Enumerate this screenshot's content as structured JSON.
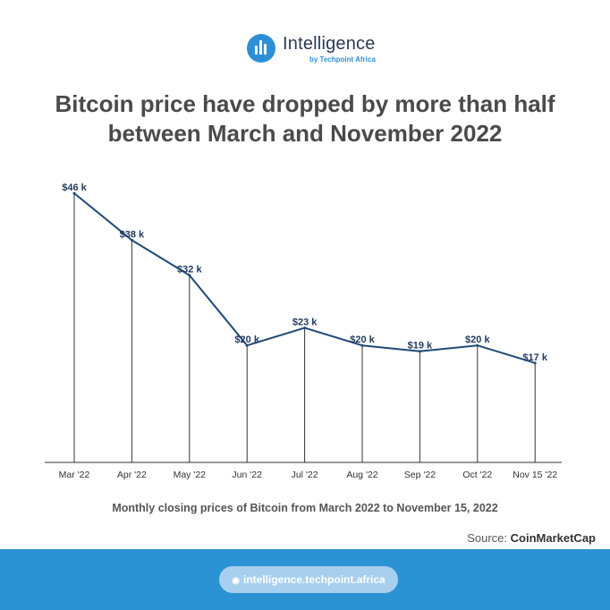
{
  "brand": {
    "logo_icon": "bar-chart-icon",
    "name": "Intelligence",
    "sub": "by Techpoint Africa"
  },
  "title_lines": [
    "Bitcoin price have dropped by more than half",
    "between March and November 2022"
  ],
  "chart_data": {
    "type": "line",
    "categories": [
      "Mar '22",
      "Apr '22",
      "May '22",
      "Jun '22",
      "Jul '22",
      "Aug '22",
      "Sep '22",
      "Oct '22",
      "Nov 15 '22"
    ],
    "values": [
      46,
      38,
      32,
      20,
      23,
      20,
      19,
      20,
      17
    ],
    "labels": [
      "$46 k",
      "$38 k",
      "$32 k",
      "$20 k",
      "$23 k",
      "$20 k",
      "$19 k",
      "$20 k",
      "$17 k"
    ],
    "unit": "thousand USD",
    "ylim": [
      0,
      50
    ],
    "grid": false,
    "colors": {
      "line": "#1f4a78",
      "label": "#1f3a5f"
    }
  },
  "caption": "Monthly closing prices of Bitcoin from March 2022 to November 15, 2022",
  "source": {
    "label": "Source:",
    "name": "CoinMarketCap"
  },
  "footer": {
    "globe_icon": "globe-icon",
    "url": "intelligence.techpoint.africa"
  }
}
